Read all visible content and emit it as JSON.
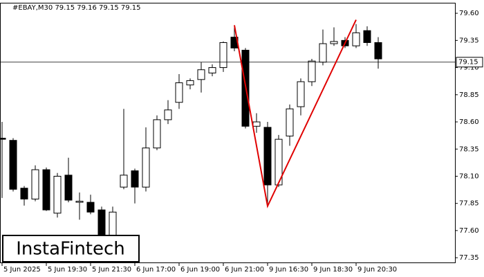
{
  "chart_data": {
    "type": "candlestick",
    "title": "#EBAY,M30  79.15 79.16 79.15 79.15",
    "categories": [
      "5 Jun 2025",
      null,
      null,
      null,
      "5 Jun 19:30",
      null,
      null,
      null,
      "5 Jun 21:30",
      null,
      null,
      null,
      "6 Jun 17:00",
      null,
      null,
      null,
      "6 Jun 19:00",
      null,
      null,
      null,
      "6 Jun 21:00",
      null,
      null,
      null,
      "9 Jun 16:30",
      null,
      null,
      null,
      "9 Jun 18:30",
      null,
      null,
      null,
      "9 Jun 20:30",
      null,
      null
    ],
    "open": [
      78.45,
      78.43,
      77.99,
      77.89,
      78.16,
      77.76,
      78.11,
      77.86,
      77.86,
      77.79,
      77.4,
      78.0,
      78.15,
      78.0,
      78.36,
      78.62,
      78.78,
      78.94,
      78.99,
      79.05,
      79.1,
      79.38,
      79.26,
      78.56,
      78.55,
      78.02,
      78.47,
      78.74,
      78.97,
      79.15,
      79.32,
      79.35,
      79.3,
      79.44,
      79.33
    ],
    "high": [
      78.6,
      78.45,
      78.01,
      78.2,
      78.18,
      78.13,
      78.27,
      77.95,
      77.93,
      77.82,
      77.82,
      78.72,
      78.17,
      78.55,
      78.66,
      78.8,
      79.04,
      79.0,
      79.15,
      79.13,
      79.34,
      79.48,
      79.28,
      78.68,
      78.6,
      78.48,
      78.76,
      79.0,
      79.18,
      79.45,
      79.47,
      79.38,
      79.5,
      79.48,
      79.38
    ],
    "low": [
      77.9,
      77.96,
      77.83,
      77.87,
      77.78,
      77.72,
      77.86,
      77.7,
      77.75,
      77.3,
      77.35,
      77.98,
      77.85,
      77.96,
      78.34,
      78.58,
      78.72,
      78.9,
      78.87,
      79.02,
      79.06,
      79.25,
      78.54,
      78.5,
      77.84,
      78.0,
      78.38,
      78.66,
      78.93,
      79.12,
      79.3,
      79.28,
      79.28,
      79.3,
      79.09
    ],
    "close": [
      78.44,
      77.98,
      77.89,
      78.16,
      77.79,
      78.1,
      77.88,
      77.87,
      77.77,
      77.35,
      77.77,
      78.11,
      78.0,
      78.36,
      78.62,
      78.71,
      78.96,
      78.98,
      79.08,
      79.1,
      79.33,
      79.28,
      78.56,
      78.6,
      78.02,
      78.44,
      78.72,
      78.97,
      79.16,
      79.32,
      79.34,
      79.3,
      79.42,
      79.33,
      79.18
    ],
    "up_color": "#ffffff",
    "down_color": "#000000",
    "ylim": [
      77.3,
      79.69
    ],
    "yticks": [
      {
        "value": 79.6,
        "label": "79.60"
      },
      {
        "value": 79.35,
        "label": "79.35"
      },
      {
        "value": 79.1,
        "label": "79.10"
      },
      {
        "value": 78.85,
        "label": "78.85"
      },
      {
        "value": 78.6,
        "label": "78.60"
      },
      {
        "value": 78.35,
        "label": "78.35"
      },
      {
        "value": 78.1,
        "label": "78.10"
      },
      {
        "value": 77.85,
        "label": "77.85"
      },
      {
        "value": 77.6,
        "label": "77.60"
      },
      {
        "value": 77.35,
        "label": "77.35"
      }
    ],
    "current_price": 79.15,
    "pattern": {
      "x": [
        21,
        24,
        32
      ],
      "values": [
        79.49,
        77.825,
        79.54
      ],
      "color": "#e00000"
    },
    "logo": "InstaFintech"
  }
}
